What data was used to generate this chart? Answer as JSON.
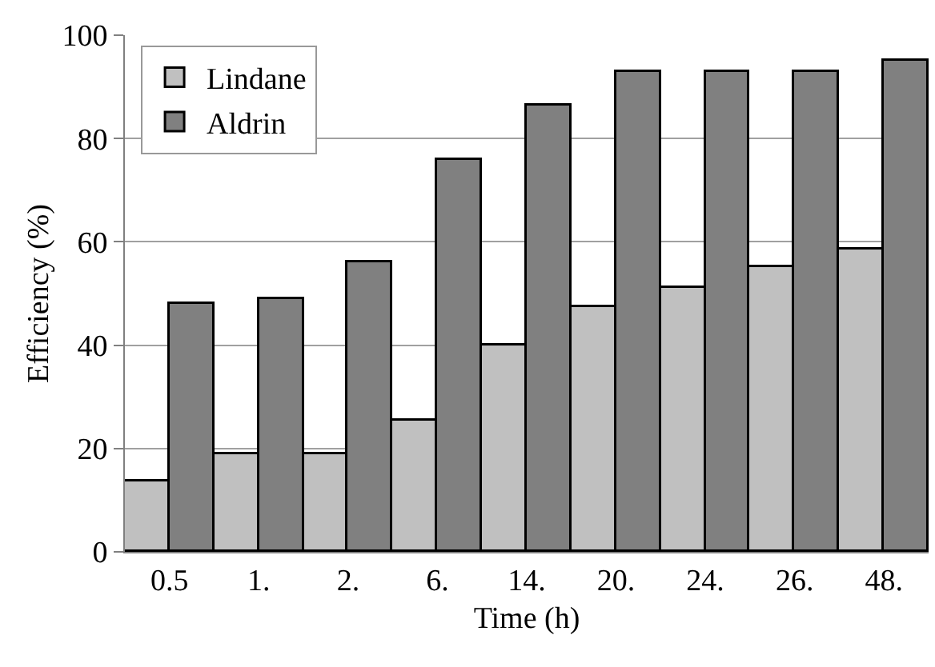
{
  "chart_data": {
    "type": "bar",
    "xlabel": "Time (h)",
    "ylabel": "Efficiency (%)",
    "categories": [
      "0.5",
      "1.",
      "2.",
      "6.",
      "14.",
      "20.",
      "24.",
      "26.",
      "48."
    ],
    "series": [
      {
        "name": "Lindane",
        "color": "#c0c0c0",
        "values": [
          13.5,
          19,
          19,
          25.5,
          40,
          47.5,
          51,
          55,
          58.5
        ]
      },
      {
        "name": "Aldrin",
        "color": "#808080",
        "values": [
          48,
          49,
          56,
          76,
          86.5,
          93,
          93,
          93,
          95
        ]
      }
    ],
    "ylim": [
      0,
      100
    ],
    "yticks": [
      0,
      20,
      40,
      60,
      80,
      100
    ],
    "grid": "y",
    "legend": "top left"
  }
}
